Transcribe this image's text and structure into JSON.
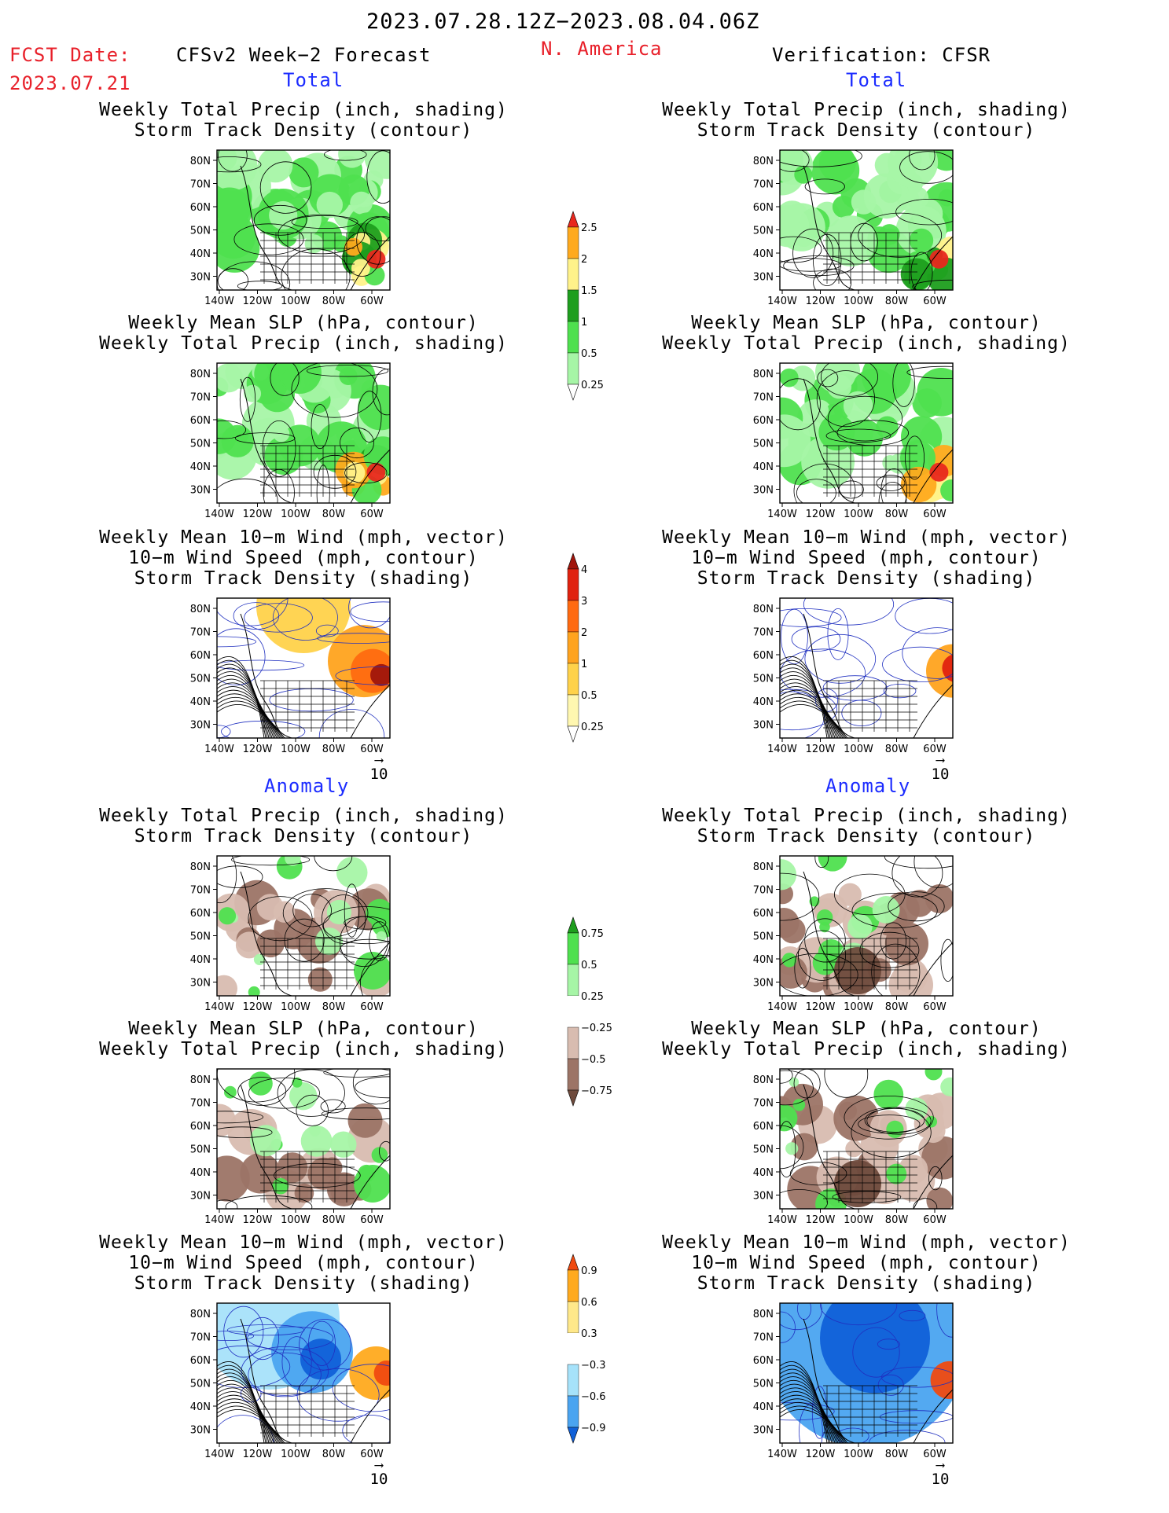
{
  "header": {
    "period": "2023.07.28.12Z−2023.08.04.06Z",
    "fcst_label": "FCST Date:",
    "fcst_date": "2023.07.21",
    "left_title": "CFSv2 Week−2 Forecast",
    "region": "N. America",
    "right_title": "Verification: CFSR"
  },
  "sections": {
    "total": "Total",
    "anomaly": "Anomaly"
  },
  "titles": {
    "precip_storm": [
      "Weekly Total Precip (inch, shading)",
      "Storm Track Density (contour)"
    ],
    "slp_precip": [
      "Weekly Mean SLP (hPa, contour)",
      "Weekly Total Precip (inch, shading)"
    ],
    "wind_storm": [
      "Weekly Mean 10−m Wind (mph, vector)",
      "10−m Wind Speed (mph, contour)",
      "Storm Track Density (shading)"
    ]
  },
  "axes": {
    "lat_labels": [
      "80N",
      "70N",
      "60N",
      "50N",
      "40N",
      "30N"
    ],
    "lon_labels": [
      "140W",
      "120W",
      "100W",
      "80W",
      "60W"
    ]
  },
  "vector_scale": "10",
  "colorbars": {
    "precip_total": {
      "levels": [
        "0.25",
        "0.5",
        "1",
        "1.5",
        "2",
        "2.5"
      ],
      "colors": [
        "#ffffff",
        "#a6f5a6",
        "#4fe04f",
        "#1e9e1e",
        "#fff28a",
        "#ffaa1e",
        "#e8281e"
      ]
    },
    "storm_total": {
      "levels": [
        "0.25",
        "0.5",
        "1",
        "2",
        "3",
        "4"
      ],
      "colors": [
        "#ffffff",
        "#fff7b0",
        "#ffd24a",
        "#ffa31e",
        "#ff6a10",
        "#e0220f",
        "#a0150c"
      ]
    },
    "precip_anom": {
      "levels": [
        "−0.75",
        "−0.5",
        "−0.25",
        "0.25",
        "0.5",
        "0.75"
      ],
      "colors": [
        "#6e4a3c",
        "#9c7466",
        "#d8bcb0",
        "#ffffff",
        "#a6f5a6",
        "#4fe04f",
        "#1e9e1e"
      ]
    },
    "storm_anom": {
      "levels": [
        "−0.9",
        "−0.6",
        "−0.3",
        "0.3",
        "0.6",
        "0.9"
      ],
      "colors": [
        "#1060d8",
        "#4aa4f0",
        "#a6e2fa",
        "#ffffff",
        "#ffe88a",
        "#ffaa1e",
        "#f04a10"
      ]
    }
  }
}
